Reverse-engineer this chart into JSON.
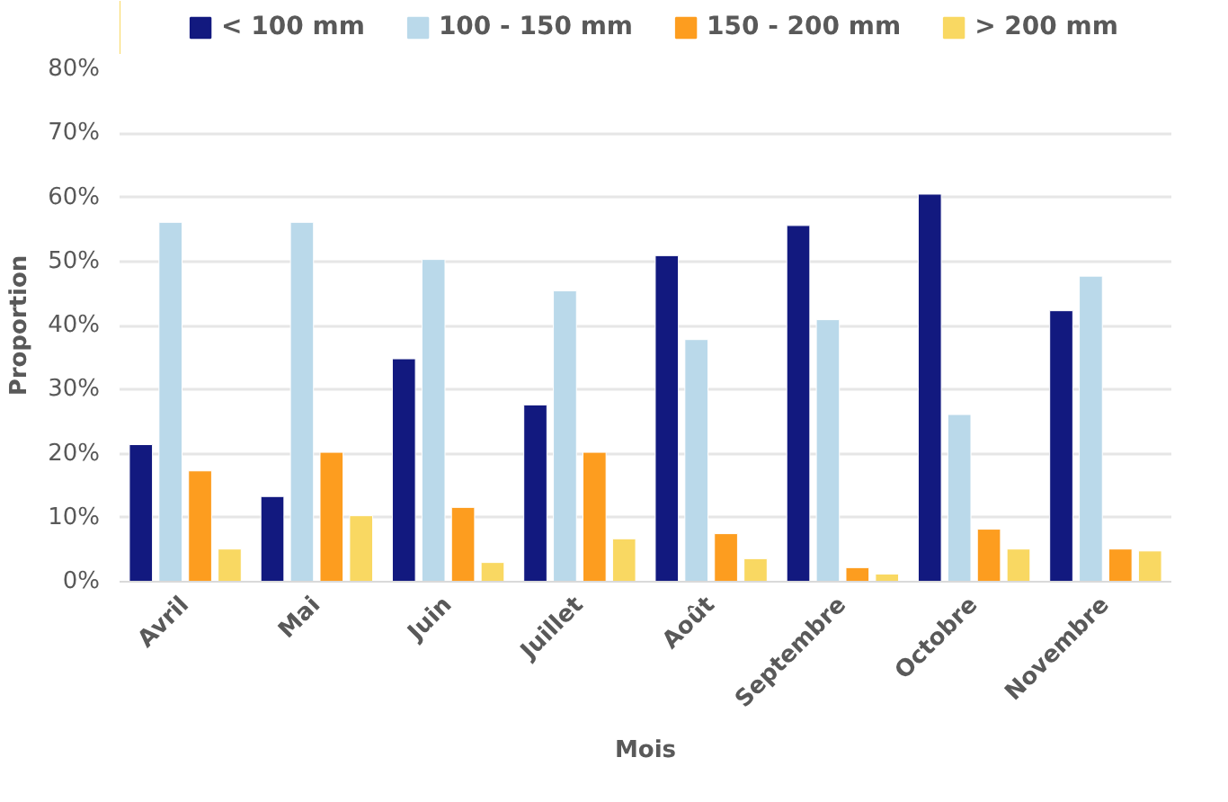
{
  "chart_data": {
    "type": "bar",
    "xlabel": "Mois",
    "ylabel": "Proportion",
    "categories": [
      "Avril",
      "Mai",
      "Juin",
      "Juillet",
      "Août",
      "Septembre",
      "Octobre",
      "Novembre"
    ],
    "series": [
      {
        "name": "< 100 mm",
        "color": "#12197f",
        "values": [
          21.4,
          13.3,
          34.8,
          27.6,
          50.9,
          55.6,
          60.5,
          42.3
        ]
      },
      {
        "name": "100 - 150 mm",
        "color": "#bad9ea",
        "values": [
          56.1,
          56.1,
          50.3,
          45.4,
          37.8,
          40.9,
          26.1,
          47.7
        ]
      },
      {
        "name": "150 - 200 mm",
        "color": "#fd9d1f",
        "values": [
          17.3,
          20.2,
          11.6,
          20.2,
          7.5,
          2.2,
          8.2,
          5.1
        ]
      },
      {
        "name": "> 200 mm",
        "color": "#f9d862",
        "values": [
          5.1,
          10.3,
          3.0,
          6.7,
          3.6,
          1.2,
          5.1,
          4.8
        ]
      }
    ],
    "ylim": [
      0,
      80
    ],
    "yticks": [
      {
        "value": 0,
        "label": "0%"
      },
      {
        "value": 10,
        "label": "10%"
      },
      {
        "value": 20,
        "label": "20%"
      },
      {
        "value": 30,
        "label": "30%"
      },
      {
        "value": 40,
        "label": "40%"
      },
      {
        "value": 50,
        "label": "50%"
      },
      {
        "value": 60,
        "label": "60%"
      },
      {
        "value": 70,
        "label": "70%"
      },
      {
        "value": 80,
        "label": "80%"
      }
    ],
    "grid": "y",
    "legend": "top"
  }
}
